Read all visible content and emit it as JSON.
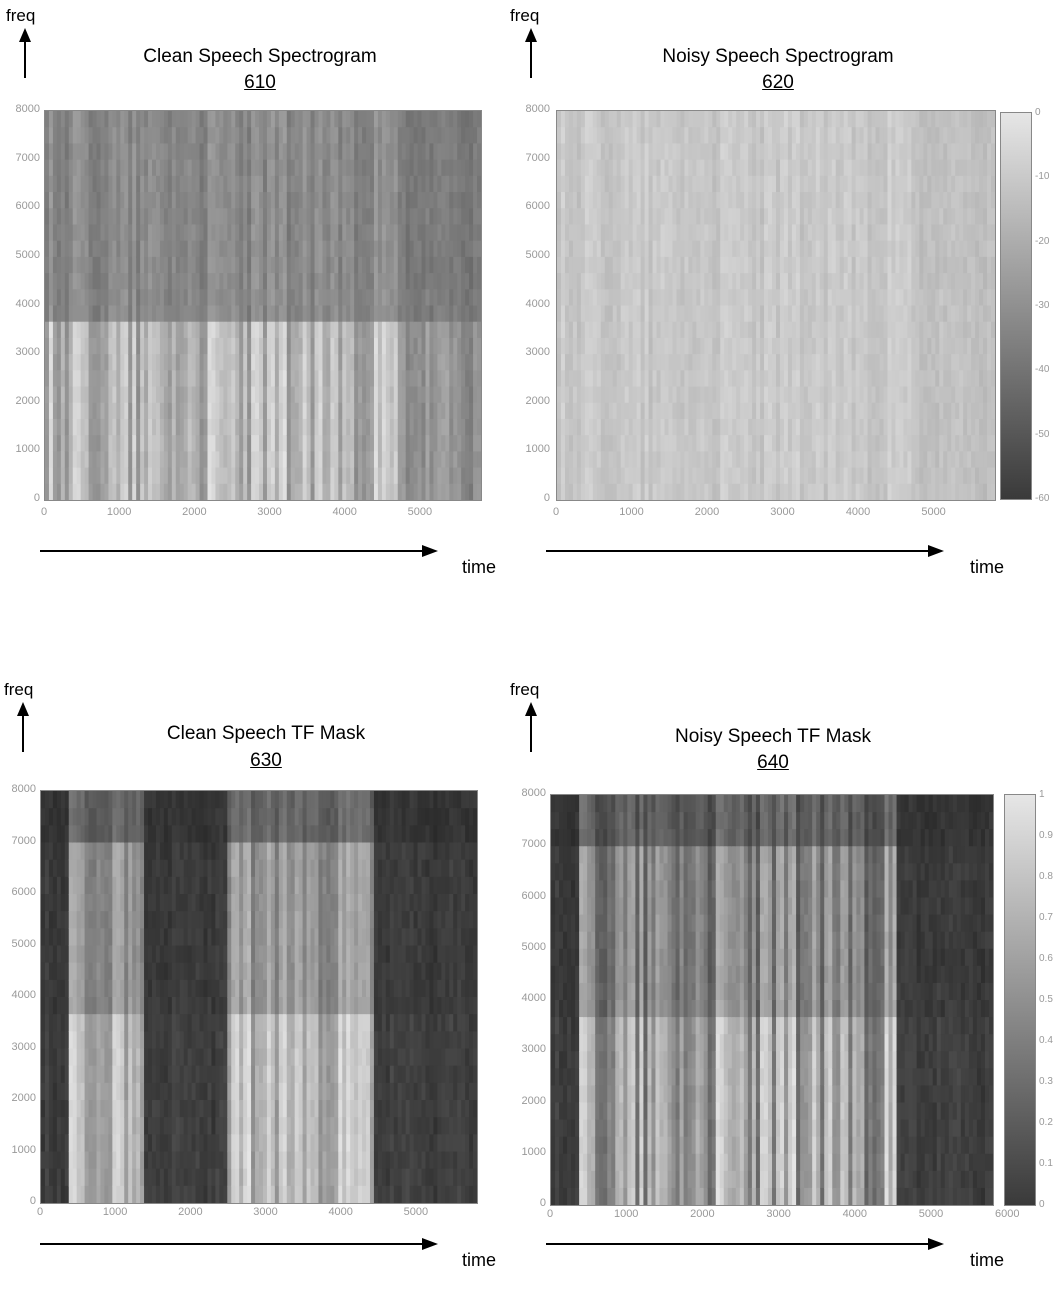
{
  "axes": {
    "freq_label": "freq",
    "time_label": "time"
  },
  "chart_data": [
    {
      "type": "heatmap",
      "title": "Clean Speech Spectrogram",
      "ref": "610",
      "y_ticks": [
        "0",
        "1000",
        "2000",
        "3000",
        "4000",
        "5000",
        "6000",
        "7000",
        "8000"
      ],
      "x_ticks": [
        "0",
        "1000",
        "2000",
        "3000",
        "4000",
        "5000"
      ],
      "ylim": [
        0,
        8000
      ],
      "xlim": [
        0,
        5800
      ],
      "shading": "dark-grey background with lighter vertical speech bands below ~4000 Hz",
      "colorbar": false
    },
    {
      "type": "heatmap",
      "title": "Noisy Speech Spectrogram",
      "ref": "620",
      "y_ticks": [
        "0",
        "1000",
        "2000",
        "3000",
        "4000",
        "5000",
        "6000",
        "7000",
        "8000"
      ],
      "x_ticks": [
        "0",
        "1000",
        "2000",
        "3000",
        "4000",
        "5000"
      ],
      "ylim": [
        0,
        8000
      ],
      "xlim": [
        0,
        5800
      ],
      "shading": "uniform light-grey noise with faint vertical bands",
      "colorbar": true,
      "colorbar_ticks": [
        "0",
        "-10",
        "-20",
        "-30",
        "-40",
        "-50",
        "-60"
      ]
    },
    {
      "type": "heatmap",
      "title": "Clean Speech TF Mask",
      "ref": "630",
      "y_ticks": [
        "0",
        "1000",
        "2000",
        "3000",
        "4000",
        "5000",
        "6000",
        "7000",
        "8000"
      ],
      "x_ticks": [
        "0",
        "1000",
        "2000",
        "3000",
        "4000",
        "5000"
      ],
      "ylim": [
        0,
        8000
      ],
      "xlim": [
        0,
        5800
      ],
      "shading": "dark background with bright mask regions in speech segments",
      "colorbar": false
    },
    {
      "type": "heatmap",
      "title": "Noisy Speech TF Mask",
      "ref": "640",
      "y_ticks": [
        "0",
        "1000",
        "2000",
        "3000",
        "4000",
        "5000",
        "6000",
        "7000",
        "8000"
      ],
      "x_ticks": [
        "0",
        "1000",
        "2000",
        "3000",
        "4000",
        "5000",
        "6000"
      ],
      "ylim": [
        0,
        8000
      ],
      "xlim": [
        0,
        5800
      ],
      "shading": "dark background with bright mask regions in speech segments",
      "colorbar": true,
      "colorbar_ticks": [
        "1",
        "0.9",
        "0.8",
        "0.7",
        "0.6",
        "0.5",
        "0.4",
        "0.3",
        "0.2",
        "0.1",
        "0"
      ]
    }
  ]
}
